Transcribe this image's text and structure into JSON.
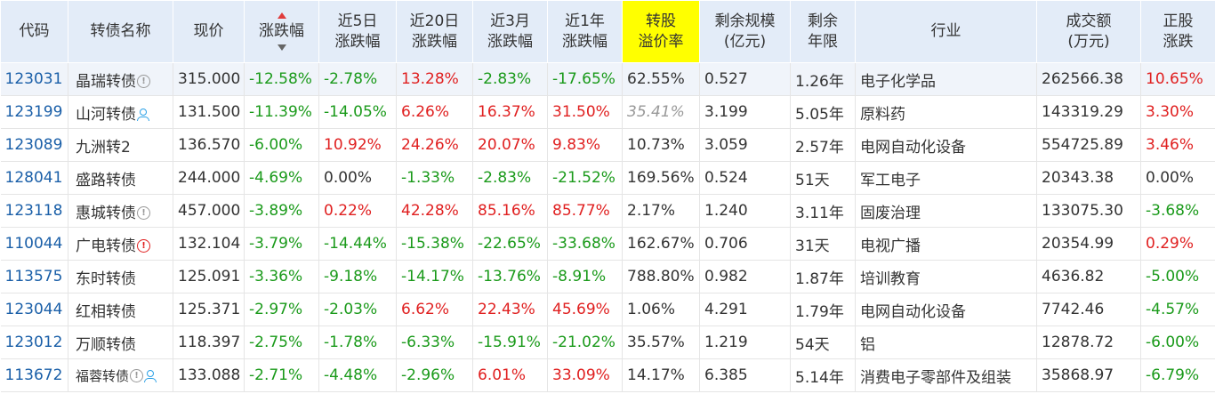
{
  "table": {
    "headers": [
      {
        "id": "code",
        "lines": [
          "代码"
        ]
      },
      {
        "id": "name",
        "lines": [
          "转债名称"
        ]
      },
      {
        "id": "price",
        "lines": [
          "现价"
        ]
      },
      {
        "id": "change",
        "lines": [
          "涨跌幅"
        ],
        "sorted": "desc"
      },
      {
        "id": "chg5d",
        "lines": [
          "近5日",
          "涨跌幅"
        ]
      },
      {
        "id": "chg20d",
        "lines": [
          "近20日",
          "涨跌幅"
        ]
      },
      {
        "id": "chg3m",
        "lines": [
          "近3月",
          "涨跌幅"
        ]
      },
      {
        "id": "chg1y",
        "lines": [
          "近1年",
          "涨跌幅"
        ]
      },
      {
        "id": "premium",
        "lines": [
          "转股",
          "溢价率"
        ],
        "highlight": "#ffff00"
      },
      {
        "id": "scale",
        "lines": [
          "剩余规模",
          "(亿元)"
        ]
      },
      {
        "id": "term",
        "lines": [
          "剩余",
          "年限"
        ]
      },
      {
        "id": "industry",
        "lines": [
          "行业"
        ]
      },
      {
        "id": "volume",
        "lines": [
          "成交额",
          "(万元)"
        ]
      },
      {
        "id": "stock_change",
        "lines": [
          "正股",
          "涨跌"
        ]
      }
    ],
    "rows": [
      {
        "code": "123031",
        "name": "晶瑞转债",
        "icons": [
          "info-grey-icon"
        ],
        "price": "315.000",
        "change": "-12.58%",
        "chg5d": "-2.78%",
        "chg20d": "13.28%",
        "chg3m": "-2.83%",
        "chg1y": "-17.65%",
        "premium": "62.55%",
        "scale": "0.527",
        "term": "1.26年",
        "industry": "电子化学品",
        "volume": "262566.38",
        "stock_change": "10.65%"
      },
      {
        "code": "123199",
        "name": "山河转债",
        "icons": [
          "person-icon"
        ],
        "price": "131.500",
        "change": "-11.39%",
        "chg5d": "-14.05%",
        "chg20d": "6.26%",
        "chg3m": "16.37%",
        "chg1y": "31.50%",
        "premium": "35.41%",
        "premium_faded": true,
        "scale": "3.199",
        "term": "5.05年",
        "industry": "原料药",
        "volume": "143319.29",
        "stock_change": "3.30%"
      },
      {
        "code": "123089",
        "name": "九洲转2",
        "icons": [],
        "price": "136.570",
        "change": "-6.00%",
        "chg5d": "10.92%",
        "chg20d": "24.26%",
        "chg3m": "20.07%",
        "chg1y": "9.83%",
        "premium": "10.73%",
        "scale": "3.059",
        "term": "2.57年",
        "industry": "电网自动化设备",
        "volume": "554725.89",
        "stock_change": "3.46%"
      },
      {
        "code": "128041",
        "name": "盛路转债",
        "icons": [],
        "price": "244.000",
        "change": "-4.69%",
        "chg5d": "0.00%",
        "chg20d": "-1.33%",
        "chg3m": "-2.83%",
        "chg1y": "-21.52%",
        "premium": "169.56%",
        "scale": "0.524",
        "term": "51天",
        "industry": "军工电子",
        "volume": "20343.38",
        "stock_change": "0.00%"
      },
      {
        "code": "123118",
        "name": "惠城转债",
        "icons": [
          "info-grey-icon"
        ],
        "price": "457.000",
        "change": "-3.89%",
        "chg5d": "0.22%",
        "chg20d": "42.28%",
        "chg3m": "85.16%",
        "chg1y": "85.77%",
        "premium": "2.17%",
        "scale": "1.240",
        "term": "3.11年",
        "industry": "固废治理",
        "volume": "133075.30",
        "stock_change": "-3.68%"
      },
      {
        "code": "110044",
        "name": "广电转债",
        "icons": [
          "alert-red-icon"
        ],
        "price": "132.104",
        "change": "-3.79%",
        "chg5d": "-14.44%",
        "chg20d": "-15.38%",
        "chg3m": "-22.65%",
        "chg1y": "-33.68%",
        "premium": "162.67%",
        "scale": "0.706",
        "term": "31天",
        "industry": "电视广播",
        "volume": "20354.99",
        "stock_change": "0.29%"
      },
      {
        "code": "113575",
        "name": "东时转债",
        "icons": [],
        "price": "125.091",
        "change": "-3.36%",
        "chg5d": "-9.18%",
        "chg20d": "-14.17%",
        "chg3m": "-13.76%",
        "chg1y": "-8.91%",
        "premium": "788.80%",
        "scale": "0.982",
        "term": "1.87年",
        "industry": "培训教育",
        "volume": "4636.82",
        "stock_change": "-5.00%"
      },
      {
        "code": "123044",
        "name": "红相转债",
        "icons": [],
        "price": "125.371",
        "change": "-2.97%",
        "chg5d": "-2.03%",
        "chg20d": "6.62%",
        "chg3m": "22.43%",
        "chg1y": "45.69%",
        "premium": "1.06%",
        "scale": "4.291",
        "term": "1.79年",
        "industry": "电网自动化设备",
        "volume": "7742.46",
        "stock_change": "-4.57%"
      },
      {
        "code": "123012",
        "name": "万顺转债",
        "icons": [],
        "price": "118.397",
        "change": "-2.75%",
        "chg5d": "-1.78%",
        "chg20d": "-6.33%",
        "chg3m": "-15.91%",
        "chg1y": "-21.02%",
        "premium": "35.57%",
        "scale": "1.219",
        "term": "54天",
        "industry": "铝",
        "volume": "12878.72",
        "stock_change": "-6.00%"
      },
      {
        "code": "113672",
        "name": "福蓉转债",
        "name_small": true,
        "icons": [
          "info-grey-icon",
          "person-icon"
        ],
        "price": "133.088",
        "change": "-2.71%",
        "chg5d": "-4.48%",
        "chg20d": "-2.96%",
        "chg3m": "6.01%",
        "chg1y": "33.09%",
        "premium": "14.17%",
        "scale": "6.385",
        "term": "5.14年",
        "industry": "消费电子零部件及组装",
        "volume": "35868.97",
        "stock_change": "-6.79%"
      }
    ]
  },
  "colors": {
    "positive": "#e02020",
    "negative": "#1a9a1a",
    "neutral": "#333333",
    "code_link": "#1a5fa8",
    "header_bg": "#e3ecf8",
    "premium_header": "#ffff00"
  }
}
